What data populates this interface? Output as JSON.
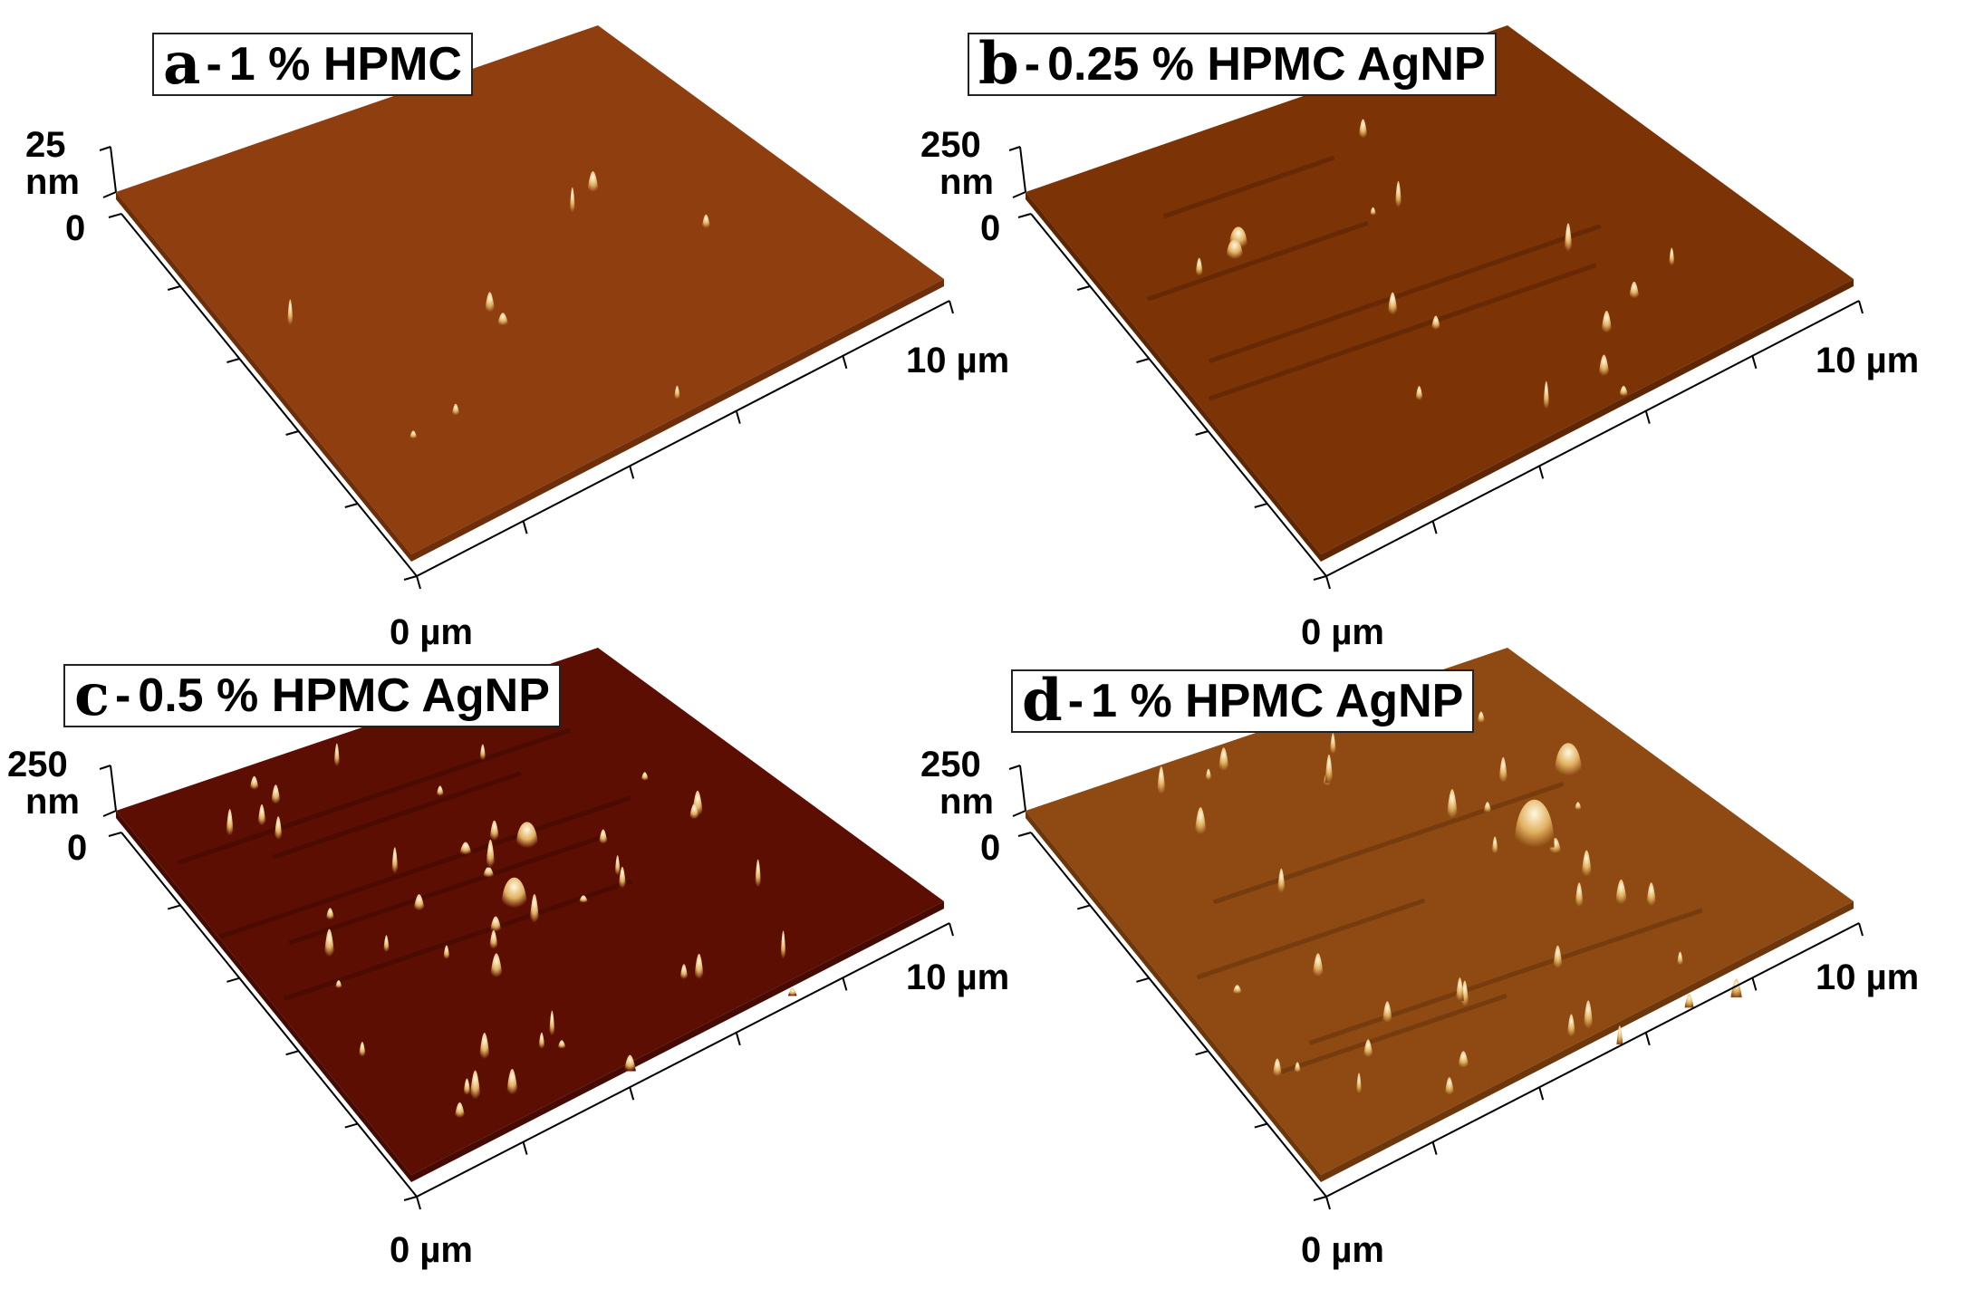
{
  "panels": [
    {
      "letter": "a",
      "title": "1 % HPMC",
      "z_top": "25",
      "z_unit": "nm",
      "z_zero": "0",
      "x_zero": "0 µm",
      "x_end": "10 µm",
      "surface_color": "#8f3e10",
      "surface_dark": "#6e2e0a"
    },
    {
      "letter": "b",
      "title": "0.25 % HPMC AgNP",
      "z_top": "250",
      "z_unit": "nm",
      "z_zero": "0",
      "x_zero": "0 µm",
      "x_end": "10 µm",
      "surface_color": "#7c3306",
      "surface_dark": "#5f2603"
    },
    {
      "letter": "c",
      "title": "0.5 % HPMC AgNP",
      "z_top": "250",
      "z_unit": "nm",
      "z_zero": "0",
      "x_zero": "0 µm",
      "x_end": "10 µm",
      "surface_color": "#5c0e02",
      "surface_dark": "#450a01"
    },
    {
      "letter": "d",
      "title": "1 % HPMC AgNP",
      "z_top": "250",
      "z_unit": "nm",
      "z_zero": "0",
      "x_zero": "0 µm",
      "x_end": "10 µm",
      "surface_color": "#8e4a12",
      "surface_dark": "#6d370b"
    }
  ]
}
